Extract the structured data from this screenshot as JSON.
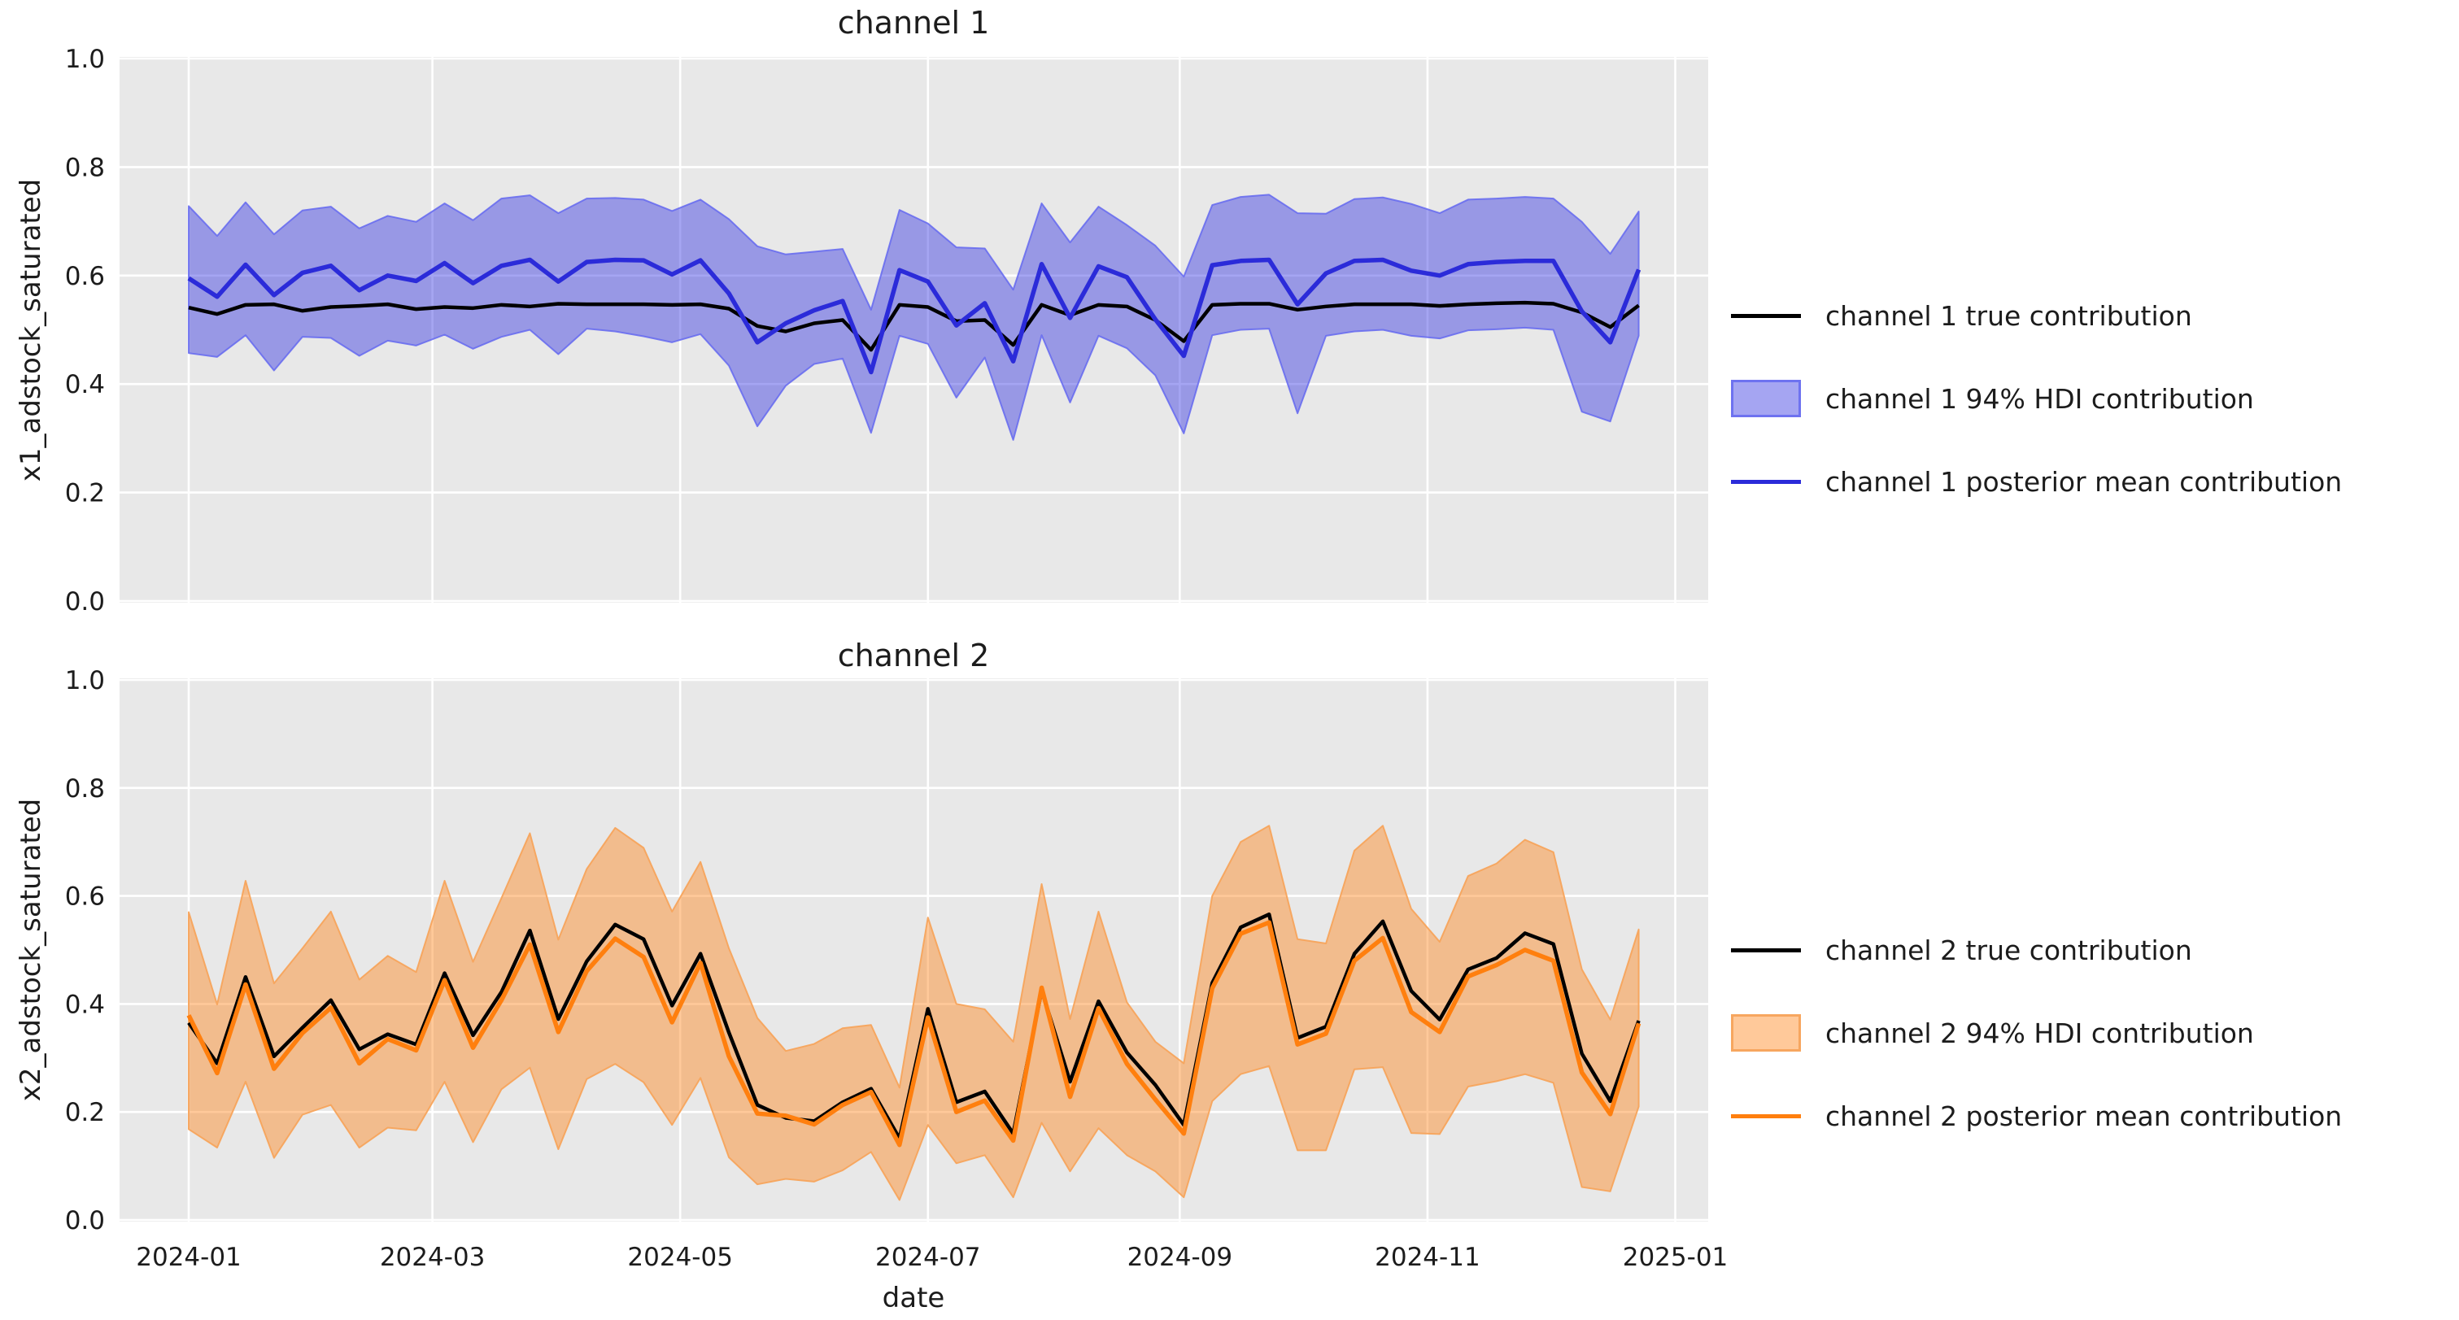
{
  "figure": {
    "background": "#ffffff",
    "axes_background": "#e8e8e8",
    "grid_color": "#ffffff",
    "text_color": "#1c1c1c",
    "xlabel": "date",
    "xticks": [
      {
        "label": "2024-01",
        "day": 0
      },
      {
        "label": "2024-03",
        "day": 60
      },
      {
        "label": "2024-05",
        "day": 121
      },
      {
        "label": "2024-07",
        "day": 182
      },
      {
        "label": "2024-09",
        "day": 244
      },
      {
        "label": "2024-11",
        "day": 305
      },
      {
        "label": "2025-01",
        "day": 366
      }
    ],
    "yticks": [
      {
        "label": "0.0",
        "value": 0.0
      },
      {
        "label": "0.2",
        "value": 0.2
      },
      {
        "label": "0.4",
        "value": 0.4
      },
      {
        "label": "0.6",
        "value": 0.6
      },
      {
        "label": "0.8",
        "value": 0.8
      },
      {
        "label": "1.0",
        "value": 1.0
      }
    ]
  },
  "charts": [
    {
      "title": "channel 1",
      "ylabel": "x1_adstock_saturated",
      "legend": [
        "channel 1 true contribution",
        "channel 1 94% HDI contribution",
        "channel 1 posterior mean contribution"
      ],
      "colors": {
        "true_line": "#000000",
        "mean_line": "#2b2bd9",
        "band_fill": "rgba(55,55,226,0.45)",
        "band_edge": "rgba(100,105,240,0.85)"
      },
      "chart_data": {
        "type": "line",
        "x_start_date": "2024-01-01",
        "x_step_days": 7,
        "n_points": 52,
        "xlim_days": [
          0,
          366
        ],
        "ylim": [
          0.0,
          1.0
        ],
        "grid": true,
        "legend_position": "right",
        "series": [
          {
            "name": "true",
            "values": [
              0.541,
              0.529,
              0.546,
              0.547,
              0.535,
              0.542,
              0.544,
              0.547,
              0.538,
              0.542,
              0.54,
              0.546,
              0.543,
              0.548,
              0.547,
              0.547,
              0.547,
              0.546,
              0.547,
              0.539,
              0.507,
              0.497,
              0.512,
              0.518,
              0.463,
              0.546,
              0.542,
              0.516,
              0.518,
              0.472,
              0.546,
              0.527,
              0.546,
              0.543,
              0.518,
              0.479,
              0.546,
              0.548,
              0.548,
              0.537,
              0.543,
              0.547,
              0.547,
              0.547,
              0.544,
              0.547,
              0.549,
              0.55,
              0.548,
              0.532,
              0.505,
              0.545
            ]
          },
          {
            "name": "posterior_mean",
            "values": [
              0.595,
              0.561,
              0.62,
              0.564,
              0.605,
              0.618,
              0.573,
              0.6,
              0.59,
              0.623,
              0.586,
              0.618,
              0.629,
              0.589,
              0.625,
              0.629,
              0.628,
              0.602,
              0.628,
              0.567,
              0.477,
              0.512,
              0.536,
              0.553,
              0.422,
              0.61,
              0.589,
              0.508,
              0.549,
              0.442,
              0.621,
              0.522,
              0.617,
              0.597,
              0.519,
              0.452,
              0.619,
              0.627,
              0.629,
              0.547,
              0.604,
              0.627,
              0.629,
              0.609,
              0.6,
              0.621,
              0.625,
              0.627,
              0.627,
              0.534,
              0.477,
              0.611
            ]
          },
          {
            "name": "hdi_low",
            "values": [
              0.457,
              0.45,
              0.49,
              0.425,
              0.487,
              0.485,
              0.452,
              0.48,
              0.471,
              0.491,
              0.465,
              0.487,
              0.5,
              0.455,
              0.502,
              0.497,
              0.488,
              0.477,
              0.492,
              0.434,
              0.322,
              0.397,
              0.437,
              0.447,
              0.31,
              0.489,
              0.474,
              0.375,
              0.449,
              0.297,
              0.49,
              0.366,
              0.489,
              0.466,
              0.416,
              0.309,
              0.49,
              0.5,
              0.502,
              0.346,
              0.489,
              0.497,
              0.5,
              0.489,
              0.484,
              0.499,
              0.501,
              0.504,
              0.5,
              0.349,
              0.331,
              0.489
            ]
          },
          {
            "name": "hdi_high",
            "values": [
              0.728,
              0.673,
              0.735,
              0.676,
              0.72,
              0.727,
              0.687,
              0.71,
              0.699,
              0.733,
              0.702,
              0.742,
              0.748,
              0.715,
              0.742,
              0.743,
              0.74,
              0.719,
              0.74,
              0.704,
              0.654,
              0.639,
              0.644,
              0.649,
              0.537,
              0.721,
              0.696,
              0.652,
              0.65,
              0.574,
              0.733,
              0.661,
              0.727,
              0.693,
              0.655,
              0.598,
              0.73,
              0.745,
              0.749,
              0.715,
              0.714,
              0.741,
              0.744,
              0.732,
              0.715,
              0.74,
              0.742,
              0.745,
              0.742,
              0.699,
              0.64,
              0.718
            ]
          }
        ]
      }
    },
    {
      "title": "channel 2",
      "ylabel": "x2_adstock_saturated",
      "legend": [
        "channel 2 true contribution",
        "channel 2 94% HDI contribution",
        "channel 2 posterior mean contribution"
      ],
      "colors": {
        "true_line": "#000000",
        "mean_line": "#ff7f0e",
        "band_fill": "rgba(255,127,14,0.42)",
        "band_edge": "rgba(247,164,92,0.95)"
      },
      "chart_data": {
        "type": "line",
        "x_start_date": "2024-01-01",
        "x_step_days": 7,
        "n_points": 52,
        "xlim_days": [
          0,
          366
        ],
        "ylim": [
          0.0,
          1.0
        ],
        "grid": true,
        "legend_position": "right",
        "series": [
          {
            "name": "true",
            "values": [
              0.365,
              0.29,
              0.45,
              0.303,
              0.356,
              0.407,
              0.316,
              0.344,
              0.325,
              0.457,
              0.342,
              0.422,
              0.536,
              0.372,
              0.479,
              0.547,
              0.52,
              0.397,
              0.493,
              0.347,
              0.213,
              0.189,
              0.183,
              0.218,
              0.243,
              0.151,
              0.391,
              0.218,
              0.238,
              0.16,
              0.425,
              0.256,
              0.405,
              0.31,
              0.25,
              0.176,
              0.439,
              0.542,
              0.566,
              0.337,
              0.358,
              0.493,
              0.553,
              0.424,
              0.371,
              0.464,
              0.485,
              0.531,
              0.511,
              0.308,
              0.22,
              0.369
            ]
          },
          {
            "name": "posterior_mean",
            "values": [
              0.379,
              0.272,
              0.436,
              0.28,
              0.346,
              0.393,
              0.29,
              0.335,
              0.314,
              0.444,
              0.319,
              0.407,
              0.51,
              0.348,
              0.461,
              0.521,
              0.487,
              0.366,
              0.476,
              0.303,
              0.197,
              0.193,
              0.177,
              0.213,
              0.237,
              0.139,
              0.375,
              0.2,
              0.221,
              0.147,
              0.43,
              0.228,
              0.392,
              0.289,
              0.223,
              0.16,
              0.429,
              0.53,
              0.551,
              0.325,
              0.345,
              0.48,
              0.522,
              0.385,
              0.348,
              0.451,
              0.472,
              0.5,
              0.48,
              0.273,
              0.196,
              0.364
            ]
          },
          {
            "name": "hdi_low",
            "values": [
              0.168,
              0.134,
              0.256,
              0.115,
              0.195,
              0.213,
              0.134,
              0.171,
              0.166,
              0.256,
              0.144,
              0.242,
              0.282,
              0.131,
              0.261,
              0.289,
              0.255,
              0.176,
              0.263,
              0.116,
              0.066,
              0.076,
              0.071,
              0.092,
              0.126,
              0.037,
              0.176,
              0.105,
              0.12,
              0.042,
              0.18,
              0.09,
              0.17,
              0.12,
              0.09,
              0.042,
              0.22,
              0.27,
              0.285,
              0.129,
              0.129,
              0.279,
              0.283,
              0.161,
              0.159,
              0.247,
              0.257,
              0.27,
              0.254,
              0.061,
              0.053,
              0.21
            ]
          },
          {
            "name": "hdi_high",
            "values": [
              0.57,
              0.399,
              0.628,
              0.438,
              0.503,
              0.571,
              0.445,
              0.489,
              0.459,
              0.628,
              0.478,
              0.596,
              0.716,
              0.519,
              0.65,
              0.726,
              0.689,
              0.571,
              0.663,
              0.503,
              0.374,
              0.313,
              0.326,
              0.355,
              0.361,
              0.245,
              0.56,
              0.4,
              0.39,
              0.33,
              0.622,
              0.372,
              0.571,
              0.403,
              0.33,
              0.29,
              0.6,
              0.7,
              0.73,
              0.52,
              0.512,
              0.684,
              0.73,
              0.576,
              0.515,
              0.637,
              0.66,
              0.704,
              0.681,
              0.464,
              0.371,
              0.538
            ]
          }
        ]
      }
    }
  ]
}
